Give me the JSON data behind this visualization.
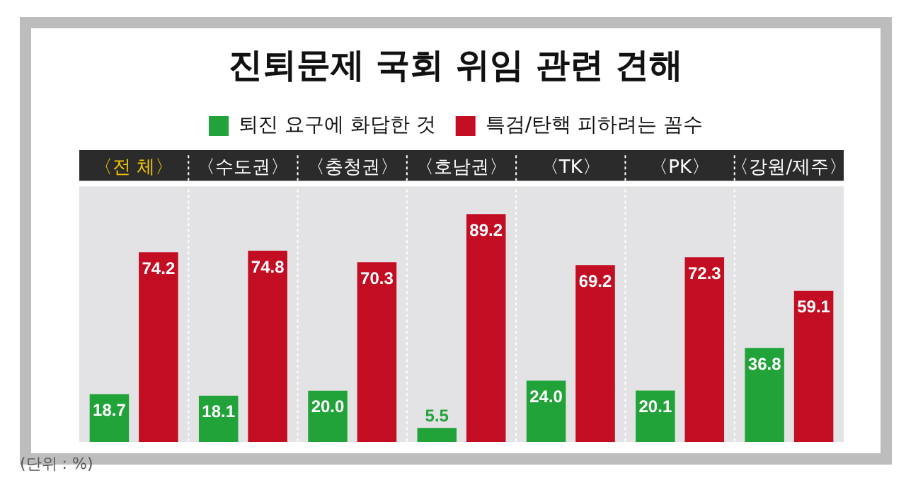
{
  "chart_data": {
    "type": "bar",
    "title": "진퇴문제 국회 위임 관련 견해",
    "categories": [
      "〈전 체〉",
      "〈수도권〉",
      "〈충청권〉",
      "〈호남권〉",
      "〈TK〉",
      "〈PK〉",
      "〈강원/제주〉"
    ],
    "series": [
      {
        "name": "퇴진 요구에 화답한 것",
        "color": "#22a33a",
        "values": [
          18.7,
          18.1,
          20.0,
          5.5,
          24.0,
          20.1,
          36.8
        ],
        "value_labels": [
          "18.7",
          "18.1",
          "20.0",
          "5.5",
          "24.0",
          "20.1",
          "36.8"
        ]
      },
      {
        "name": "특검/탄핵 피하려는 꼼수",
        "color": "#c30d23",
        "values": [
          74.2,
          74.8,
          70.3,
          89.2,
          69.2,
          72.3,
          59.1
        ],
        "value_labels": [
          "74.2",
          "74.8",
          "70.3",
          "89.2",
          "69.2",
          "72.3",
          "59.1"
        ]
      }
    ],
    "relative": false,
    "legend": "top",
    "grid": false,
    "annotations": [
      "(단위 : %)"
    ]
  }
}
